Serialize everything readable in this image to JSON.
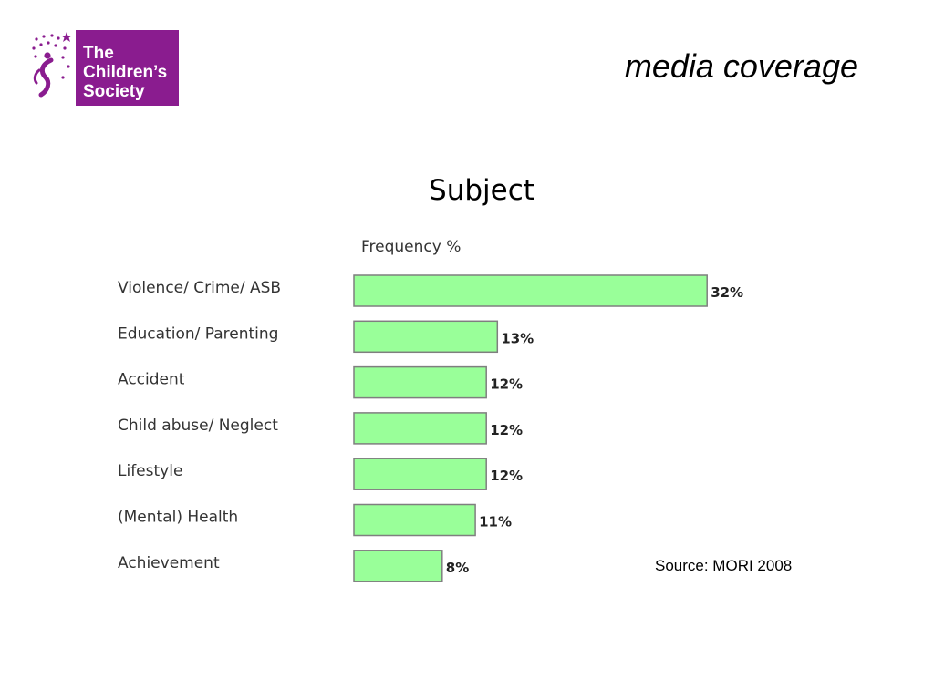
{
  "logo": {
    "lines": [
      "The",
      "Children’s",
      "Society"
    ],
    "color": "#8a1c8f"
  },
  "slide": {
    "title": "media coverage",
    "source": "Source: MORI 2008"
  },
  "chart_data": {
    "type": "bar",
    "orientation": "horizontal",
    "title": "Subject",
    "xlabel": "Frequency %",
    "ylabel": "",
    "categories": [
      "Violence/ Crime/ ASB",
      "Education/ Parenting",
      "Accident",
      "Child abuse/ Neglect",
      "Lifestyle",
      "(Mental) Health",
      "Achievement"
    ],
    "values": [
      32,
      13,
      12,
      12,
      12,
      11,
      8
    ],
    "value_labels": [
      "32%",
      "13%",
      "12%",
      "12%",
      "12%",
      "11%",
      "8%"
    ],
    "xlim": [
      0,
      32
    ],
    "grid": false,
    "legend": "none",
    "bar_color": "#99ff99",
    "bar_edge_color": "#7f7f7f"
  }
}
